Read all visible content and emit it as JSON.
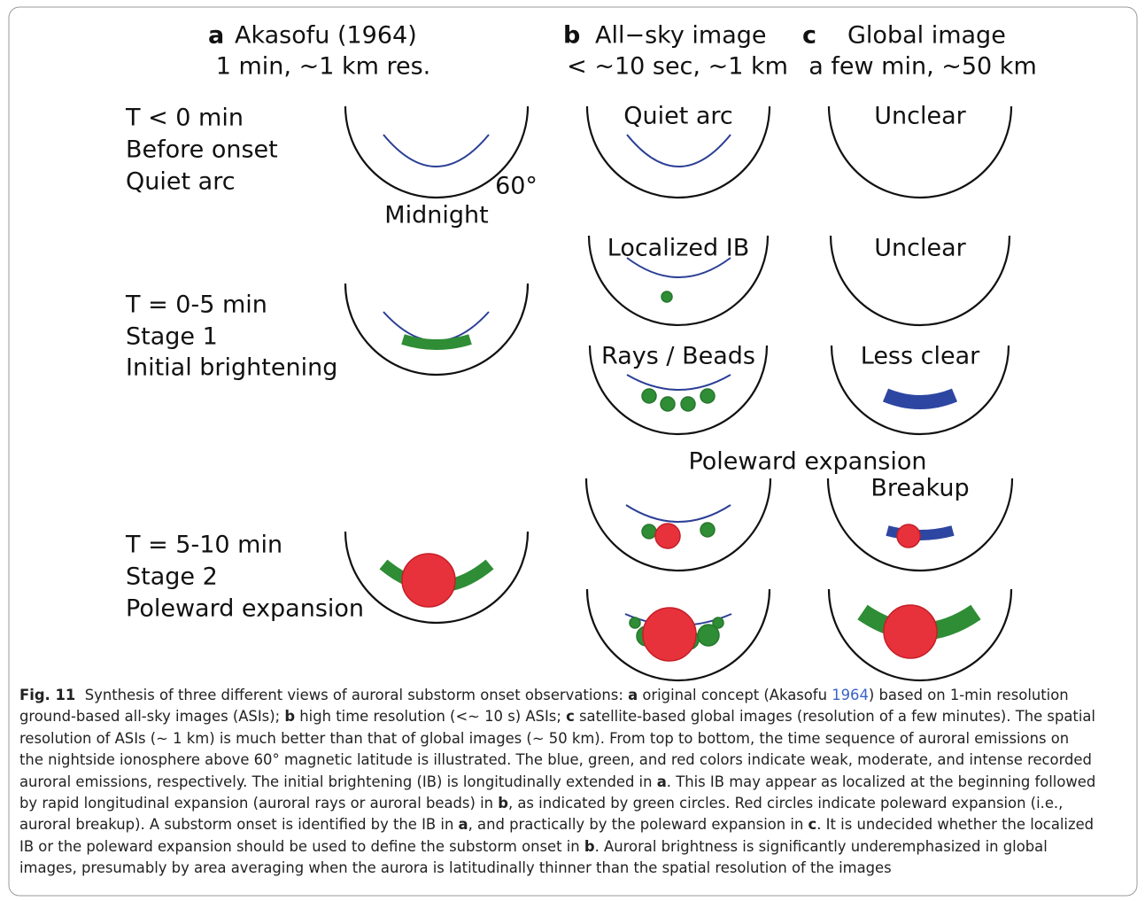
{
  "columns": [
    {
      "letter": "a",
      "title": "Akasofu (1964)",
      "subtitle": "1 min, ~1 km res."
    },
    {
      "letter": "b",
      "title": "All−sky image",
      "subtitle": "< ~10 sec, ~1 km"
    },
    {
      "letter": "c",
      "title": "Global image",
      "subtitle": "a few min, ~50 km"
    }
  ],
  "rows": [
    [
      "T < 0 min",
      "Before onset",
      "Quiet arc"
    ],
    [
      "T = 0-5 min",
      "Stage 1",
      "Initial brightening"
    ],
    [
      "T = 5-10 min",
      "Stage 2",
      "Poleward expansion"
    ]
  ],
  "annotations": {
    "angle": "60°",
    "midnight": "Midnight",
    "poleward": "Poleward expansion"
  },
  "panels": {
    "b": [
      "Quiet arc",
      "Localized IB",
      "Rays / Beads"
    ],
    "c": [
      "Unclear",
      "Unclear",
      "Less clear",
      "Breakup"
    ]
  },
  "caption": [
    [
      {
        "text": "Fig. 11",
        "style": "bold"
      },
      {
        "text": "  Synthesis of three different views of auroral substorm onset observations: "
      },
      {
        "text": "a",
        "style": "bold"
      },
      {
        "text": " original concept (Akasofu "
      },
      {
        "text": "1964",
        "style": "link"
      },
      {
        "text": ") based on 1-min resolution"
      }
    ],
    [
      {
        "text": "ground-based all-sky images (ASIs); "
      },
      {
        "text": "b",
        "style": "bold"
      },
      {
        "text": " high time resolution (<∼ 10 s) ASIs; "
      },
      {
        "text": "c",
        "style": "bold"
      },
      {
        "text": " satellite-based global images (resolution of a few minutes). The spatial"
      }
    ],
    [
      {
        "text": "resolution of ASIs (∼ 1 km) is much better than that of global images (∼ 50 km). From top to bottom, the time sequence of auroral emissions on"
      }
    ],
    [
      {
        "text": "the nightside ionosphere above 60° magnetic latitude is illustrated. The blue, green, and red colors indicate weak, moderate, and intense recorded"
      }
    ],
    [
      {
        "text": "auroral emissions, respectively. The initial brightening (IB) is longitudinally extended in "
      },
      {
        "text": "a",
        "style": "bold"
      },
      {
        "text": ". This IB may appear as localized at the beginning followed"
      }
    ],
    [
      {
        "text": "by rapid longitudinal expansion (auroral rays or auroral beads) in "
      },
      {
        "text": "b",
        "style": "bold"
      },
      {
        "text": ", as indicated by green circles. Red circles indicate poleward expansion (i.e.,"
      }
    ],
    [
      {
        "text": "auroral breakup). A substorm onset is identified by the IB in "
      },
      {
        "text": "a",
        "style": "bold"
      },
      {
        "text": ", and practically by the poleward expansion in "
      },
      {
        "text": "c",
        "style": "bold"
      },
      {
        "text": ". It is undecided whether the localized"
      }
    ],
    [
      {
        "text": "IB or the poleward expansion should be used to define the substorm onset in "
      },
      {
        "text": "b",
        "style": "bold"
      },
      {
        "text": ". Auroral brightness is significantly underemphasized in global"
      }
    ],
    [
      {
        "text": "images, presumably by area averaging when the aurora is latitudinally thinner than the spatial resolution of the images"
      }
    ]
  ]
}
